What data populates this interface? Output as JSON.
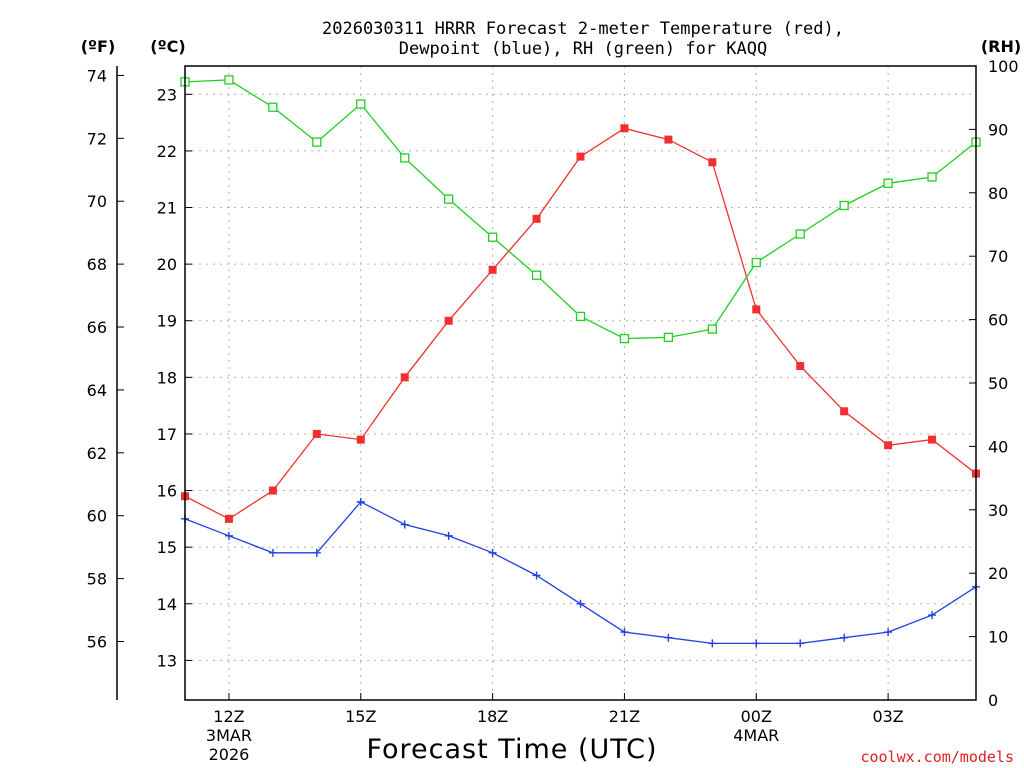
{
  "chart_data": {
    "type": "line",
    "title_line1": "2026030311 HRRR Forecast 2-meter Temperature (red),",
    "title_line2": "Dewpoint (blue), RH (green) for KAQQ",
    "xlabel": "Forecast Time (UTC)",
    "credit": "coolwx.com/models",
    "units": {
      "fahrenheit": "(ºF)",
      "celsius": "(ºC)",
      "rh": "(RH)"
    },
    "celsius_axis": {
      "range": [
        12.3,
        23.5
      ],
      "ticks": [
        "13",
        "14",
        "15",
        "16",
        "17",
        "18",
        "19",
        "20",
        "21",
        "22",
        "23"
      ]
    },
    "fahrenheit_axis": {
      "ticks": [
        "56",
        "58",
        "60",
        "62",
        "64",
        "66",
        "68",
        "70",
        "72",
        "74"
      ]
    },
    "rh_axis": {
      "range": [
        0,
        100
      ],
      "ticks": [
        "0",
        "10",
        "20",
        "30",
        "40",
        "50",
        "60",
        "70",
        "80",
        "90",
        "100"
      ]
    },
    "x": {
      "hours": [
        11,
        12,
        13,
        14,
        15,
        16,
        17,
        18,
        19,
        20,
        21,
        22,
        23,
        24,
        25,
        26,
        27,
        28,
        29
      ],
      "range": [
        11,
        29
      ]
    },
    "x_ticks": [
      {
        "hour": 12,
        "label": "12Z",
        "sub1": "3MAR",
        "sub2": "2026"
      },
      {
        "hour": 15,
        "label": "15Z",
        "sub1": "",
        "sub2": ""
      },
      {
        "hour": 18,
        "label": "18Z",
        "sub1": "",
        "sub2": ""
      },
      {
        "hour": 21,
        "label": "21Z",
        "sub1": "",
        "sub2": ""
      },
      {
        "hour": 24,
        "label": "00Z",
        "sub1": "4MAR",
        "sub2": ""
      },
      {
        "hour": 27,
        "label": "03Z",
        "sub1": "",
        "sub2": ""
      }
    ],
    "series": [
      {
        "name": "Temperature",
        "unit": "C",
        "color": "#f03030",
        "marker": "filled-square",
        "values": [
          15.9,
          15.5,
          16.0,
          17.0,
          16.9,
          18.0,
          19.0,
          19.9,
          20.8,
          21.9,
          22.4,
          22.2,
          21.8,
          19.2,
          18.2,
          17.4,
          16.8,
          16.9,
          16.3
        ]
      },
      {
        "name": "Dewpoint",
        "unit": "C",
        "color": "#2040e0",
        "marker": "plus",
        "values": [
          15.5,
          15.2,
          14.9,
          14.9,
          15.8,
          15.4,
          15.2,
          14.9,
          14.5,
          14.0,
          13.5,
          13.4,
          13.3,
          13.3,
          13.3,
          13.4,
          13.5,
          13.8,
          14.3
        ]
      },
      {
        "name": "RH",
        "unit": "%",
        "color": "#20d020",
        "marker": "open-square",
        "values": [
          97.5,
          97.8,
          93.5,
          88.0,
          94.0,
          85.5,
          79.0,
          73.0,
          67.0,
          60.5,
          57.0,
          57.2,
          58.5,
          69.0,
          73.5,
          78.0,
          81.5,
          82.5,
          88.0
        ]
      }
    ]
  }
}
